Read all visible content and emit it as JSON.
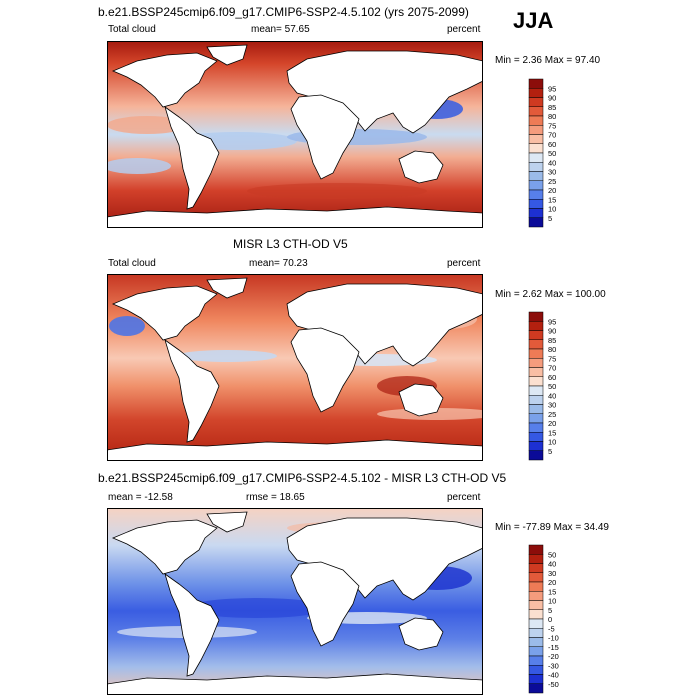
{
  "season": "JJA",
  "land_color": "#ffffff",
  "panels": [
    {
      "title": "b.e21.BSSP245cmip6.f09_g17.CMIP6-SSP2-4.5.102 (yrs 2075-2099)",
      "left": "Total cloud",
      "center": "mean=  57.65",
      "right": "percent",
      "minmax": "Min =   2.36 Max =  97.40",
      "colorbar_labels": [
        "95",
        "90",
        "85",
        "80",
        "75",
        "70",
        "60",
        "50",
        "40",
        "30",
        "25",
        "20",
        "15",
        "10",
        "5"
      ],
      "colorbar_colors": [
        "#8c0d0a",
        "#b3200f",
        "#cf3a21",
        "#e25a3a",
        "#ee7b56",
        "#f59c7d",
        "#f9bea4",
        "#fbe0d0",
        "#dde8f4",
        "#bdd2ee",
        "#9bbbe9",
        "#7aa1ea",
        "#577fea",
        "#3558e3",
        "#1d30d2",
        "#0b0b98"
      ]
    },
    {
      "title": "MISR L3 CTH-OD V5",
      "left": "Total cloud",
      "center": "mean=  70.23",
      "right": "percent",
      "minmax": "Min =   2.62 Max = 100.00",
      "colorbar_labels": [
        "95",
        "90",
        "85",
        "80",
        "75",
        "70",
        "60",
        "50",
        "40",
        "30",
        "25",
        "20",
        "15",
        "10",
        "5"
      ],
      "colorbar_colors": [
        "#8c0d0a",
        "#b3200f",
        "#cf3a21",
        "#e25a3a",
        "#ee7b56",
        "#f59c7d",
        "#f9bea4",
        "#fbe0d0",
        "#dde8f4",
        "#bdd2ee",
        "#9bbbe9",
        "#7aa1ea",
        "#577fea",
        "#3558e3",
        "#1d30d2",
        "#0b0b98"
      ]
    },
    {
      "title": "b.e21.BSSP245cmip6.f09_g17.CMIP6-SSP2-4.5.102 - MISR L3 CTH-OD V5",
      "left": "mean = -12.58",
      "center": "rmse =  18.65",
      "right": "percent",
      "minmax": "Min = -77.89 Max =  34.49",
      "colorbar_labels": [
        "50",
        "40",
        "30",
        "20",
        "15",
        "10",
        "5",
        "0",
        "-5",
        "-10",
        "-15",
        "-20",
        "-30",
        "-40",
        "-50"
      ],
      "colorbar_colors": [
        "#8c0d0a",
        "#b3200f",
        "#cf3a21",
        "#e25a3a",
        "#ee7b56",
        "#f59c7d",
        "#f9bea4",
        "#fbe0d0",
        "#dde8f4",
        "#bdd2ee",
        "#9bbbe9",
        "#7aa1ea",
        "#577fea",
        "#3558e3",
        "#1d30d2",
        "#0b0b98"
      ]
    }
  ]
}
